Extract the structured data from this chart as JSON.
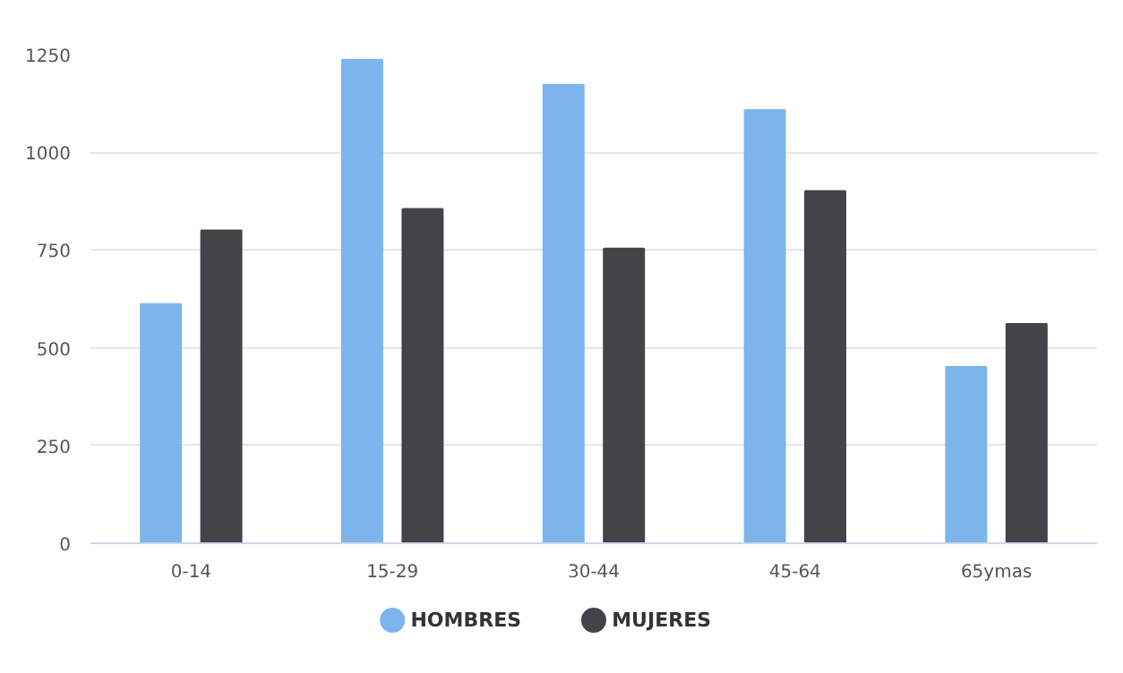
{
  "chart_data": {
    "type": "bar",
    "categories": [
      "0-14",
      "15-29",
      "30-44",
      "45-64",
      "65ymas"
    ],
    "series": [
      {
        "name": "HOMBRES",
        "color": "#7cb5ec",
        "values": [
          612,
          1237,
          1173,
          1108,
          451
        ]
      },
      {
        "name": "MUJERES",
        "color": "#434348",
        "values": [
          800,
          855,
          754,
          901,
          561
        ]
      }
    ],
    "ylim": [
      0,
      1250
    ],
    "yticks": [
      0,
      250,
      500,
      750,
      1000,
      1250
    ],
    "grid": "y",
    "legend": "bottom"
  }
}
